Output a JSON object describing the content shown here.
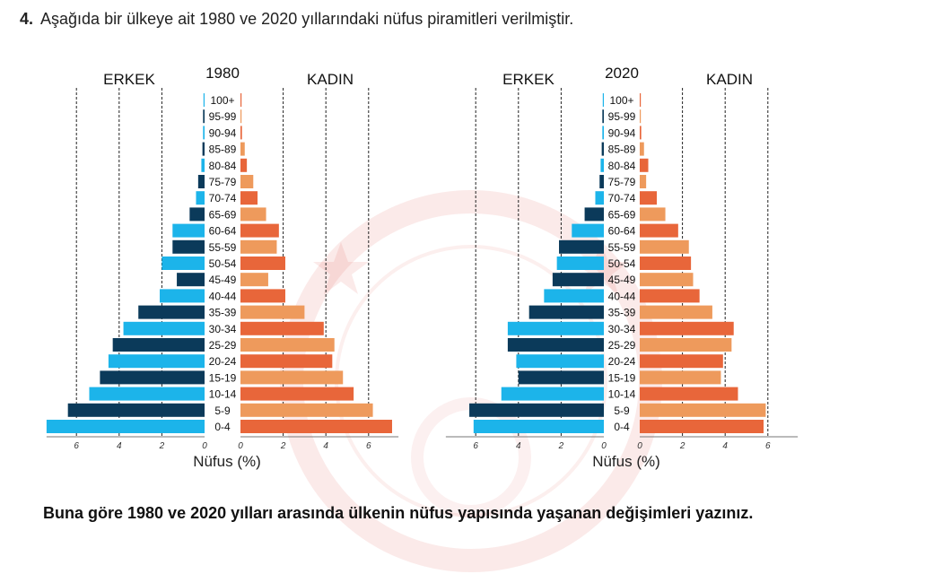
{
  "question": {
    "number": "4.",
    "text": "Aşağıda bir ülkeye ait 1980 ve 2020 yıllarındaki nüfus piramitleri verilmiştir."
  },
  "prompt": "Buna göre 1980 ve 2020 yılları arasında ülkenin nüfus yapısında yaşanan değişimleri yazınız.",
  "colors": {
    "male_light": "#1cb4ea",
    "male_dark": "#0b3a5a",
    "female_orange": "#e8663a",
    "female_light": "#ee9a5c",
    "grid": "#222222",
    "watermark": "#d9312b"
  },
  "chart_data": [
    {
      "type": "bar",
      "title": "1980",
      "left_label": "ERKEK",
      "right_label": "KADIN",
      "xlabel": "Nüfus (%)",
      "xlim": [
        0,
        8
      ],
      "ticks": [
        6,
        4,
        2,
        0
      ],
      "grid": true,
      "categories": [
        "100+",
        "95-99",
        "90-94",
        "85-89",
        "80-84",
        "75-79",
        "70-74",
        "65-69",
        "60-64",
        "55-59",
        "50-54",
        "45-49",
        "40-44",
        "35-39",
        "30-34",
        "25-29",
        "20-24",
        "15-19",
        "10-14",
        "5-9",
        "0-4"
      ],
      "series": [
        {
          "name": "ERKEK",
          "values": [
            0.05,
            0.07,
            0.07,
            0.1,
            0.15,
            0.3,
            0.4,
            0.7,
            1.5,
            1.5,
            2.0,
            1.3,
            2.1,
            3.1,
            3.8,
            4.3,
            4.5,
            4.9,
            5.4,
            6.4,
            7.4
          ]
        },
        {
          "name": "KADIN",
          "values": [
            0.05,
            0.05,
            0.07,
            0.2,
            0.3,
            0.6,
            0.8,
            1.2,
            1.8,
            1.7,
            2.1,
            1.3,
            2.1,
            3.0,
            3.9,
            4.4,
            4.3,
            4.8,
            5.3,
            6.2,
            7.1
          ]
        }
      ]
    },
    {
      "type": "bar",
      "title": "2020",
      "left_label": "ERKEK",
      "right_label": "KADIN",
      "xlabel": "Nüfus (%)",
      "xlim": [
        0,
        8
      ],
      "ticks": [
        6,
        4,
        2,
        0
      ],
      "grid": true,
      "categories": [
        "100+",
        "95-99",
        "90-94",
        "85-89",
        "80-84",
        "75-79",
        "70-74",
        "65-69",
        "60-64",
        "55-59",
        "50-54",
        "45-49",
        "40-44",
        "35-39",
        "30-34",
        "25-29",
        "20-24",
        "15-19",
        "10-14",
        "5-9",
        "0-4"
      ],
      "series": [
        {
          "name": "ERKEK",
          "values": [
            0.05,
            0.07,
            0.07,
            0.1,
            0.15,
            0.2,
            0.4,
            0.9,
            1.5,
            2.1,
            2.2,
            2.4,
            2.8,
            3.5,
            4.5,
            4.5,
            4.1,
            4.0,
            4.8,
            6.3,
            6.1
          ]
        },
        {
          "name": "KADIN",
          "values": [
            0.05,
            0.05,
            0.07,
            0.2,
            0.4,
            0.3,
            0.8,
            1.2,
            1.8,
            2.3,
            2.4,
            2.5,
            2.8,
            3.4,
            4.4,
            4.3,
            3.9,
            3.8,
            4.6,
            5.9,
            5.8
          ]
        }
      ]
    }
  ]
}
